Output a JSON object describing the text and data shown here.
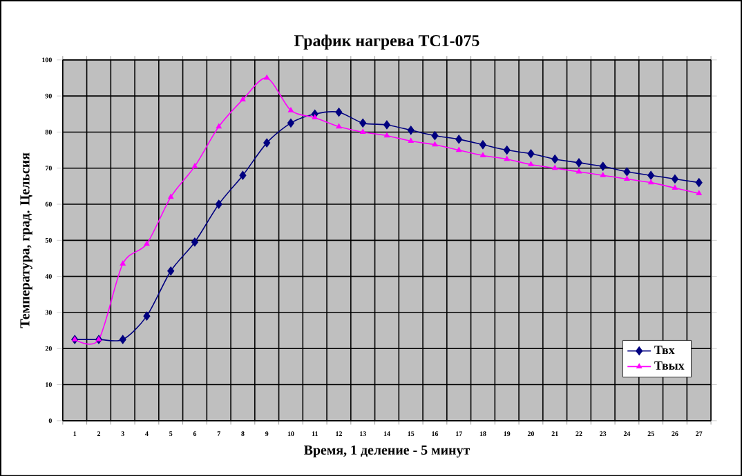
{
  "chart_data": {
    "type": "line",
    "title": "График нагрева ТС1-075",
    "xlabel": "Время, 1 деление - 5 минут",
    "ylabel": "Температура, град. Цельсия",
    "categories": [
      "1",
      "2",
      "3",
      "4",
      "5",
      "6",
      "7",
      "8",
      "9",
      "10",
      "11",
      "12",
      "13",
      "14",
      "15",
      "16",
      "17",
      "18",
      "19",
      "20",
      "21",
      "22",
      "23",
      "24",
      "25",
      "26",
      "27"
    ],
    "series": [
      {
        "name": "Твх",
        "color": "#000080",
        "marker": "diamond",
        "values": [
          22.5,
          22.5,
          22.5,
          29,
          41.5,
          49.5,
          60,
          68,
          77,
          82.5,
          85,
          85.5,
          82.5,
          82,
          80.5,
          79,
          78,
          76.5,
          75,
          74,
          72.5,
          71.5,
          70.5,
          69,
          68,
          67,
          66
        ]
      },
      {
        "name": "Твых",
        "color": "#ff00ff",
        "marker": "triangle",
        "values": [
          22.5,
          22.5,
          43.5,
          49,
          62,
          70.5,
          81.5,
          89,
          95,
          86,
          84,
          81.5,
          80,
          79,
          77.5,
          76.5,
          75,
          73.5,
          72.5,
          71,
          70,
          69,
          68,
          67,
          66,
          64.5,
          63
        ]
      }
    ],
    "ylim": [
      0,
      100
    ],
    "yticks": [
      0,
      10,
      20,
      30,
      40,
      50,
      60,
      70,
      80,
      90,
      100
    ],
    "grid": true,
    "legend": "bottom right"
  }
}
